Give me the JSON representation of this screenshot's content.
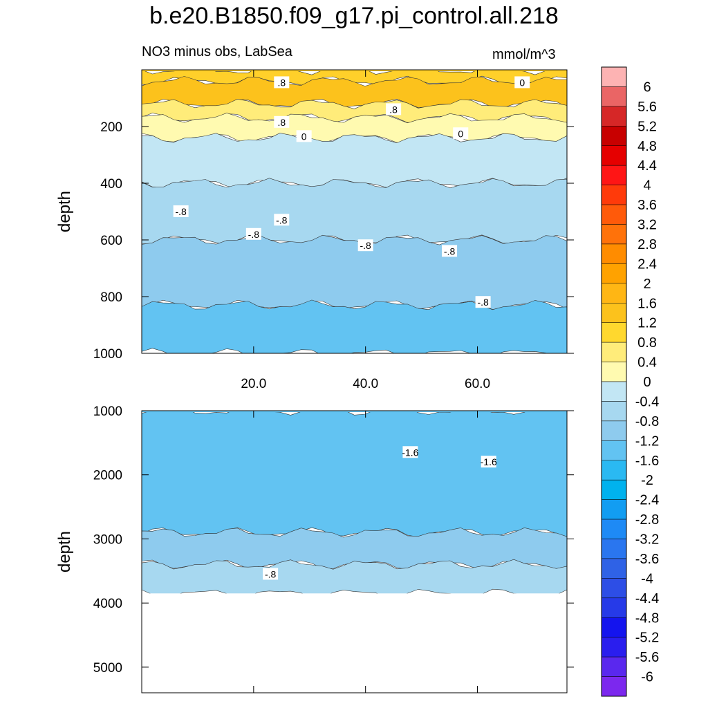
{
  "title": "b.e20.B1850.f09_g17.pi_control.all.218",
  "subtitle_left": "NO3 minus obs, LabSea",
  "units": "mmol/m^3",
  "chart_data": [
    {
      "type": "heatmap",
      "panel": "upper",
      "ylabel": "depth",
      "xlabel": "",
      "xlim": [
        0,
        76
      ],
      "ylim": [
        1000,
        0
      ],
      "xticks": [
        20,
        40,
        60
      ],
      "xtick_labels": [
        "20.0",
        "40.0",
        "60.0"
      ],
      "yticks": [
        200,
        400,
        600,
        800,
        1000
      ],
      "ytick_labels": [
        "200",
        "400",
        "600",
        "800",
        "1000"
      ],
      "contour_labels": [
        {
          "text": ".8",
          "x": 25,
          "depth": 45
        },
        {
          "text": ".8",
          "x": 45,
          "depth": 140
        },
        {
          "text": ".8",
          "x": 25,
          "depth": 185
        },
        {
          "text": "0",
          "x": 29,
          "depth": 235
        },
        {
          "text": "0",
          "x": 57,
          "depth": 225
        },
        {
          "text": "0",
          "x": 68,
          "depth": 45
        },
        {
          "text": "-.8",
          "x": 7,
          "depth": 500
        },
        {
          "text": "-.8",
          "x": 20,
          "depth": 580
        },
        {
          "text": "-.8",
          "x": 25,
          "depth": 530
        },
        {
          "text": "-.8",
          "x": 40,
          "depth": 620
        },
        {
          "text": "-.8",
          "x": 55,
          "depth": 640
        },
        {
          "text": "-.8",
          "x": 61,
          "depth": 820
        }
      ],
      "bands": [
        {
          "from": 0,
          "to": 40,
          "value_range": [
            0.8,
            1.6
          ],
          "color": "#ffd02a"
        },
        {
          "from": 40,
          "to": 120,
          "value_range": [
            1.2,
            1.6
          ],
          "color": "#fcc21c"
        },
        {
          "from": 120,
          "to": 170,
          "value_range": [
            0.4,
            0.8
          ],
          "color": "#ffec7a"
        },
        {
          "from": 170,
          "to": 240,
          "value_range": [
            0,
            0.4
          ],
          "color": "#fffab0"
        },
        {
          "from": 240,
          "to": 400,
          "value_range": [
            -0.4,
            0
          ],
          "color": "#c2e6f4"
        },
        {
          "from": 400,
          "to": 600,
          "value_range": [
            -0.8,
            -0.4
          ],
          "color": "#a7d8f0"
        },
        {
          "from": 600,
          "to": 830,
          "value_range": [
            -1.2,
            -0.8
          ],
          "color": "#8ecbee"
        },
        {
          "from": 830,
          "to": 1000,
          "value_range": [
            -1.6,
            -1.2
          ],
          "color": "#62c3f2"
        }
      ]
    },
    {
      "type": "heatmap",
      "panel": "lower",
      "ylabel": "depth",
      "xlabel": "",
      "xlim": [
        0,
        76
      ],
      "ylim": [
        5400,
        1000
      ],
      "yticks": [
        1000,
        2000,
        3000,
        4000,
        5000
      ],
      "ytick_labels": [
        "1000",
        "2000",
        "3000",
        "4000",
        "5000"
      ],
      "bottom_depth": 3850,
      "contour_labels": [
        {
          "text": "-1.6",
          "x": 48,
          "depth": 1650
        },
        {
          "text": "-1.6",
          "x": 62,
          "depth": 1800
        },
        {
          "text": "-.8",
          "x": 23,
          "depth": 3550
        }
      ],
      "bands": [
        {
          "from": 1000,
          "to": 2900,
          "value_range": [
            -1.6,
            -1.2
          ],
          "color": "#62c3f2"
        },
        {
          "from": 2900,
          "to": 3400,
          "value_range": [
            -1.2,
            -0.8
          ],
          "color": "#8ecbee"
        },
        {
          "from": 3400,
          "to": 3850,
          "value_range": [
            -0.8,
            -0.4
          ],
          "color": "#a7d8f0"
        }
      ]
    },
    {
      "type": "colorbar",
      "labels": [
        "6",
        "5.6",
        "5.2",
        "4.8",
        "4.4",
        "4",
        "3.6",
        "3.2",
        "2.8",
        "2.4",
        "2",
        "1.6",
        "1.2",
        "0.8",
        "0.4",
        "0",
        "-0.4",
        "-0.8",
        "-1.2",
        "-1.6",
        "-2",
        "-2.4",
        "-2.8",
        "-3.2",
        "-3.6",
        "-4",
        "-4.4",
        "-4.8",
        "-5.2",
        "-5.6",
        "-6"
      ],
      "colors": [
        "#fdb3b3",
        "#ea6565",
        "#d62727",
        "#c80000",
        "#e50000",
        "#ff1515",
        "#ff3a0a",
        "#ff5a0a",
        "#ff720a",
        "#ff8c00",
        "#ffa200",
        "#ffb614",
        "#fcc21c",
        "#ffd82e",
        "#ffec7a",
        "#fffab0",
        "#c2e6f4",
        "#a7d8f0",
        "#8ecbee",
        "#62c3f2",
        "#2ab9f2",
        "#00b2ee",
        "#129df2",
        "#1e8af5",
        "#2a76ef",
        "#2f62e6",
        "#2d4ee6",
        "#263ae8",
        "#1414ee",
        "#2a1eee",
        "#5a28ee",
        "#7c28ee"
      ]
    }
  ]
}
